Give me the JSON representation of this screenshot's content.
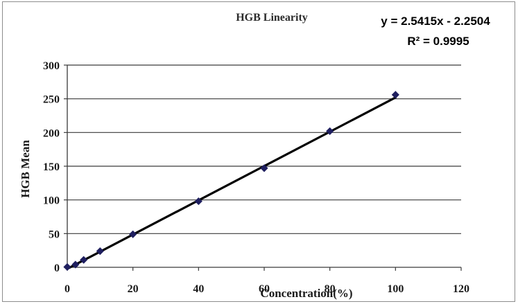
{
  "chart_data": {
    "type": "scatter",
    "title": "HGB Linearity",
    "xlabel": "Concentration(%)",
    "ylabel": "HGB Mean",
    "xlim": [
      0,
      120
    ],
    "ylim": [
      0,
      300
    ],
    "x_ticks": [
      0,
      20,
      40,
      60,
      80,
      100,
      120
    ],
    "y_ticks": [
      0,
      50,
      100,
      150,
      200,
      250,
      300
    ],
    "grid": "horizontal",
    "legend": "none",
    "series": [
      {
        "x": [
          0,
          2.5,
          5,
          10,
          20,
          40,
          60,
          80,
          100
        ],
        "y": [
          0.5,
          4,
          11,
          24,
          49,
          98,
          147,
          202,
          256
        ],
        "marker": "diamond",
        "color": "#1f1f5f"
      }
    ],
    "trendline": {
      "type": "linear",
      "slope": 2.5415,
      "intercept": -2.2504,
      "color": "#000000",
      "equation": "y = 2.5415x - 2.2504",
      "r_squared": "R² = 0.9995"
    }
  }
}
